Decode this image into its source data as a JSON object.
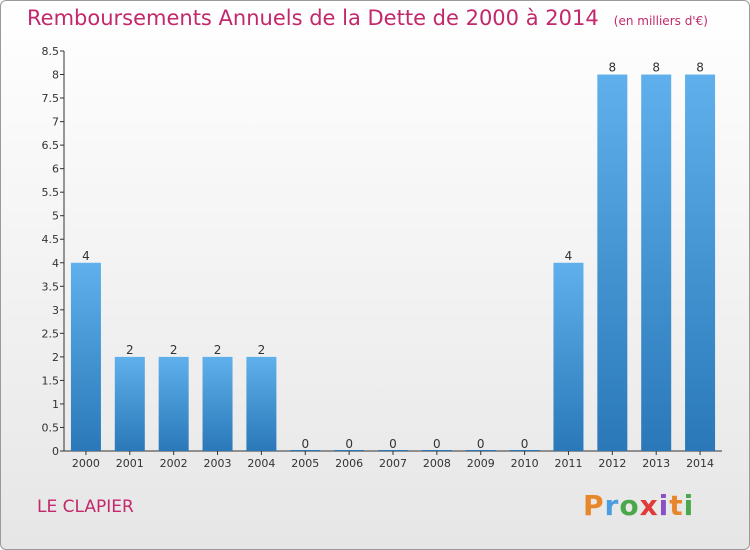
{
  "title": "Remboursements Annuels de la Dette de 2000 à 2014",
  "unit_note": "(en milliers d'€)",
  "location": "LE CLAPIER",
  "logo": {
    "letters": [
      "P",
      "r",
      "o",
      "x",
      "i",
      "t",
      "i"
    ],
    "colors": [
      "#e8862b",
      "#4a9ee0",
      "#4aa84a",
      "#e03a3a",
      "#8a4fc7",
      "#e8862b",
      "#4aa84a"
    ]
  },
  "colors": {
    "title": "#c2286b",
    "bar_top": "#5fb0ec",
    "bar_bottom": "#2a78b8",
    "axis": "#333333"
  },
  "chart_data": {
    "type": "bar",
    "categories": [
      "2000",
      "2001",
      "2002",
      "2003",
      "2004",
      "2005",
      "2006",
      "2007",
      "2008",
      "2009",
      "2010",
      "2011",
      "2012",
      "2013",
      "2014"
    ],
    "values": [
      4,
      2,
      2,
      2,
      2,
      0,
      0,
      0,
      0,
      0,
      0,
      4,
      8,
      8,
      8
    ],
    "labels": [
      "4",
      "2",
      "2",
      "2",
      "2",
      "0",
      "0",
      "0",
      "0",
      "0",
      "0",
      "4",
      "8",
      "8",
      "8"
    ],
    "yticks": [
      "0",
      "0.5",
      "1",
      "1.5",
      "2",
      "2.5",
      "3",
      "3.5",
      "4",
      "4.5",
      "5",
      "5.5",
      "6",
      "6.5",
      "7",
      "7.5",
      "8",
      "8.5"
    ],
    "ylim": [
      0,
      8.5
    ],
    "grid": false
  }
}
